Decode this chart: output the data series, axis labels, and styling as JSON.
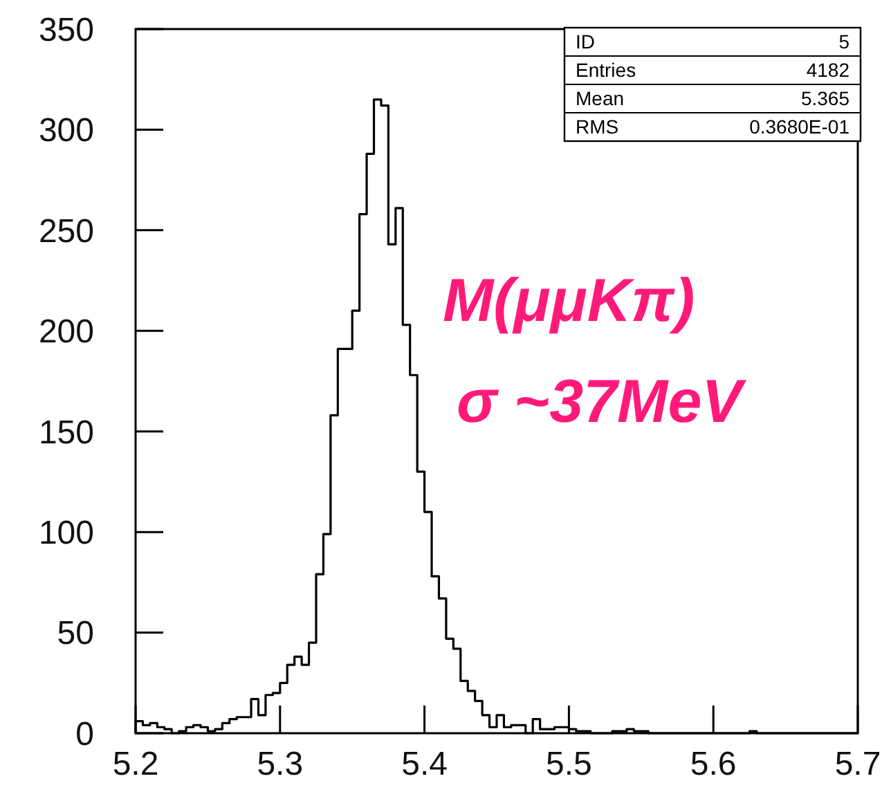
{
  "chart_data": {
    "type": "histogram",
    "bins": [
      5.2,
      5.205,
      5.21,
      5.215,
      5.22,
      5.225,
      5.23,
      5.235,
      5.24,
      5.245,
      5.25,
      5.255,
      5.26,
      5.265,
      5.27,
      5.275,
      5.28,
      5.285,
      5.29,
      5.295,
      5.3,
      5.305,
      5.31,
      5.315,
      5.32,
      5.325,
      5.33,
      5.335,
      5.34,
      5.345,
      5.35,
      5.355,
      5.36,
      5.365,
      5.37,
      5.375,
      5.38,
      5.385,
      5.39,
      5.395,
      5.4,
      5.405,
      5.41,
      5.415,
      5.42,
      5.425,
      5.43,
      5.435,
      5.44,
      5.445,
      5.45,
      5.455,
      5.46,
      5.465,
      5.47,
      5.475,
      5.48,
      5.485,
      5.49,
      5.495,
      5.5,
      5.505,
      5.51,
      5.515,
      5.52,
      5.525,
      5.53,
      5.535,
      5.54,
      5.545,
      5.55,
      5.555,
      5.56,
      5.565,
      5.57,
      5.575,
      5.58,
      5.585,
      5.59,
      5.595,
      5.6,
      5.605,
      5.61,
      5.615,
      5.62,
      5.625,
      5.63,
      5.635,
      5.64,
      5.645,
      5.65,
      5.655,
      5.66,
      5.665,
      5.67,
      5.675,
      5.68,
      5.685,
      5.69,
      5.695,
      5.7
    ],
    "values": [
      6,
      4,
      5,
      3,
      2,
      0,
      1,
      3,
      4,
      3,
      1,
      2,
      5,
      7,
      8,
      8,
      17,
      9,
      19,
      20,
      25,
      34,
      38,
      34,
      45,
      79,
      99,
      158,
      191,
      191,
      210,
      258,
      288,
      315,
      312,
      243,
      261,
      203,
      178,
      130,
      110,
      78,
      67,
      47,
      42,
      26,
      21,
      16,
      9,
      3,
      9,
      3,
      4,
      4,
      0,
      7,
      2,
      2,
      3,
      3,
      2,
      1,
      1,
      0,
      0,
      0,
      1,
      1,
      2,
      1,
      1,
      0,
      0,
      0,
      0,
      0,
      0,
      0,
      0,
      0,
      0,
      0,
      0,
      0,
      0,
      1,
      0,
      0,
      0,
      0,
      0,
      0,
      0,
      0,
      0,
      0,
      0,
      0,
      0,
      0
    ],
    "color": "#000000",
    "xlim": [
      5.2,
      5.7
    ],
    "xticks": [
      5.2,
      5.3,
      5.4,
      5.5,
      5.6,
      5.7
    ],
    "ylim": [
      0,
      350
    ],
    "yticks": [
      0,
      50,
      100,
      150,
      200,
      250,
      300,
      350
    ],
    "annotations": [
      "ID",
      "5",
      "Entries",
      "4182",
      "Mean",
      "5.365",
      "RMS",
      "0.3680E-01",
      "M(μμKπ)",
      "σ ~37MeV"
    ]
  }
}
